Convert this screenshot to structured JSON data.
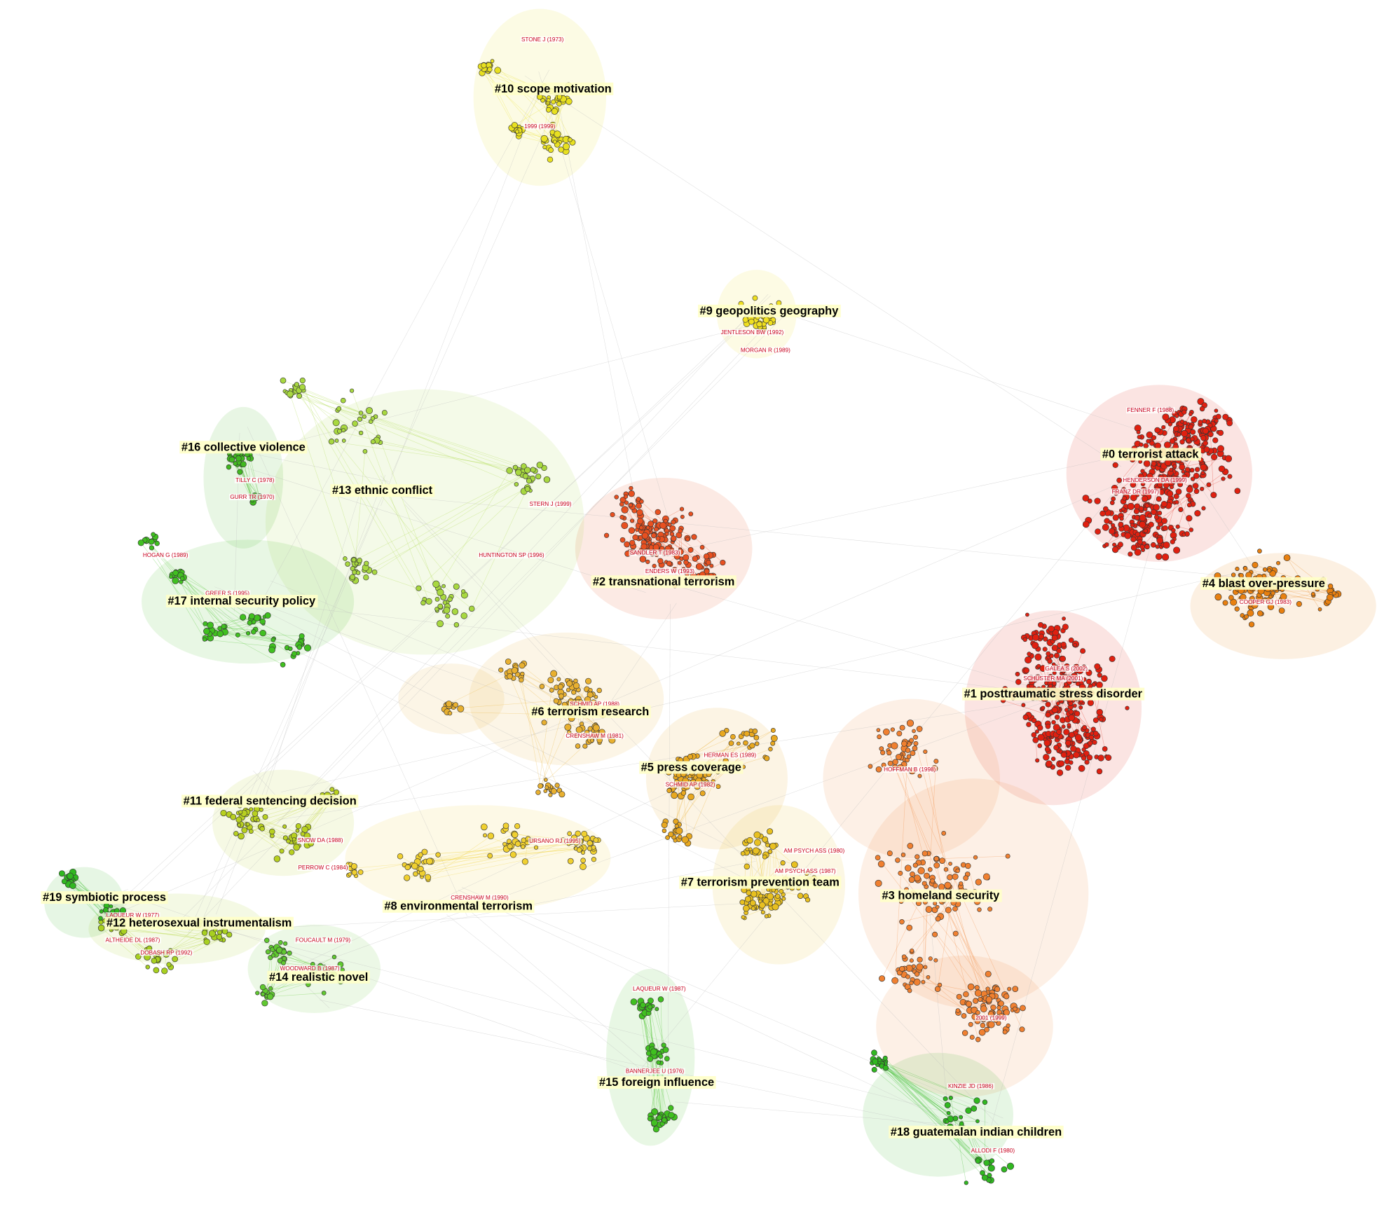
{
  "clusters": [
    {
      "label": "#0 terrorist attack",
      "refs": [
        "FENNER F (1988)",
        "HENDERSON DA (1999)",
        "FRANZ DR (1997)"
      ]
    },
    {
      "label": "#1 posttraumatic stress disorder",
      "refs": [
        "GALEA S (2002)",
        "SCHUSTER MA (2001)"
      ]
    },
    {
      "label": "#2 transnational terrorism",
      "refs": [
        "SANDLER T (1983)",
        "ENDERS W (1993)"
      ]
    },
    {
      "label": "#3 homeland security",
      "refs": [
        "HOFFMAN B (1998)",
        "2001 (1999)"
      ]
    },
    {
      "label": "#4 blast over-pressure",
      "refs": [
        "COOPER GJ (1983)"
      ]
    },
    {
      "label": "#5 press coverage",
      "refs": [
        "HERMAN ES (1989)",
        "SCHMID AP (1982)"
      ]
    },
    {
      "label": "#6 terrorism research",
      "refs": [
        "SCHMID AP (1988)",
        "CRENSHAW M (1981)"
      ]
    },
    {
      "label": "#7 terrorism prevention team",
      "refs": [
        "AM PSYCH ASS (1980)",
        "AM PSYCH ASS (1987)"
      ]
    },
    {
      "label": "#8 environmental terrorism",
      "refs": [
        "PERROW C (1984)",
        "URSANO RJ (1995)",
        "CRENSHAW M (1990)"
      ]
    },
    {
      "label": "#9 geopolitics geography",
      "refs": [
        "JENTLESON BW (1992)",
        "MORGAN R (1989)"
      ]
    },
    {
      "label": "#10 scope motivation",
      "refs": [
        "STONE J (1973)",
        "1999 (1999)"
      ]
    },
    {
      "label": "#11 federal sentencing decision",
      "refs": [
        "SNOW DA (1988)"
      ]
    },
    {
      "label": "#12 heterosexual instrumentalism",
      "refs": [
        "LAQUEUR W (1977)",
        "ALTHEIDE DL (1987)",
        "DOBASH RP (1992)"
      ]
    },
    {
      "label": "#13 ethnic conflict",
      "refs": [
        "STERN J (1999)",
        "HUNTINGTON SP (1996)"
      ]
    },
    {
      "label": "#14 realistic novel",
      "refs": [
        "FOUCAULT M (1979)",
        "WOODWARD B (1987)"
      ]
    },
    {
      "label": "#15 foreign influence",
      "refs": [
        "LAQUEUR W (1987)",
        "BANNERJEE U (1976)"
      ]
    },
    {
      "label": "#16 collective violence",
      "refs": [
        "TILLY C (1978)",
        "GURR TR (1970)"
      ]
    },
    {
      "label": "#17 internal security policy",
      "refs": [
        "HOGAN G (1989)",
        "GREER S (1995)"
      ]
    },
    {
      "label": "#18 guatemalan indian children",
      "refs": [
        "KINZIE JD (1986)",
        "ALLODI F (1980)"
      ]
    },
    {
      "label": "#19 symbiotic process",
      "refs": []
    }
  ]
}
